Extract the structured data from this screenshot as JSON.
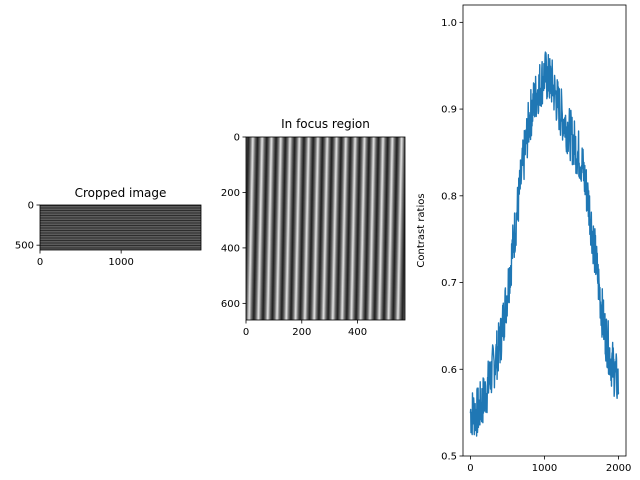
{
  "chart_data": [
    {
      "type": "image",
      "title": "Cropped image",
      "xlim": [
        0,
        1984
      ],
      "ylim": [
        560,
        0
      ],
      "xticks": [
        0,
        1000
      ],
      "yticks": [
        0,
        500
      ],
      "content": "grayscale fringe pattern, horizontal stripes"
    },
    {
      "type": "image",
      "title": "In focus region",
      "xlim": [
        0,
        570
      ],
      "ylim": [
        660,
        0
      ],
      "xticks": [
        0,
        200,
        400
      ],
      "yticks": [
        0,
        200,
        400,
        600
      ],
      "content": "grayscale vertical fringe pattern, 17 bright stripes"
    },
    {
      "type": "line",
      "title": "",
      "xlabel": "",
      "ylabel": "Contrast ratios",
      "xlim": [
        -100,
        2100
      ],
      "ylim": [
        0.5,
        1.02
      ],
      "xticks": [
        0,
        1000,
        2000
      ],
      "yticks": [
        0.5,
        0.6,
        0.7,
        0.8,
        0.9,
        1.0
      ],
      "color": "#1f77b4",
      "series": [
        {
          "x": [
            0,
            100,
            200,
            300,
            400,
            500,
            600,
            700,
            800,
            900,
            1000,
            1100,
            1200,
            1300,
            1400,
            1500,
            1600,
            1700,
            1800,
            1900,
            2000
          ],
          "y": [
            0.55,
            0.55,
            0.57,
            0.6,
            0.63,
            0.69,
            0.76,
            0.83,
            0.89,
            0.92,
            0.94,
            0.93,
            0.9,
            0.88,
            0.86,
            0.84,
            0.79,
            0.72,
            0.65,
            0.61,
            0.58
          ]
        }
      ]
    }
  ]
}
